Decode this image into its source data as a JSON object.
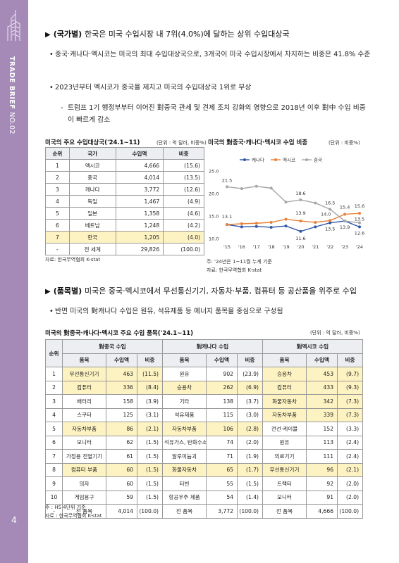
{
  "sidebar": {
    "title_bold": "TRADE BRIEF",
    "title_thin": "NO.02",
    "page_number": "4"
  },
  "section1": {
    "head_bold": "(국가별)",
    "head_rest": "한국은 미국 수입시장 내 7위(4.0%)에 달하는 상위 수입대상국",
    "bullets": [
      "중국·캐나다·멕시코는 미국의 최대 수입대상국으로, 3개국이 미국 수입시장에서 차지하는 비중은 41.8% 수준",
      "2023년부터 멕시코가 중국을 제치고 미국의 수입대상국 1위로 부상"
    ],
    "dash": "트럼프 1기 행정부부터 이어진 對중국 관세 및 견제 조치 강화의 영향으로 2018년 이후 對中 수입 비중이 빠르게 감소"
  },
  "rank_table": {
    "caption": "미국의 주요 수입대상국('24.1~11)",
    "unit": "(단위 : 억 달러, 비중%)",
    "headers": [
      "순위",
      "국가",
      "수입액",
      "비중"
    ],
    "rows": [
      [
        "1",
        "멕시코",
        "4,666",
        "(15.6)"
      ],
      [
        "2",
        "중국",
        "4,014",
        "(13.5)"
      ],
      [
        "3",
        "캐나다",
        "3,772",
        "(12.6)"
      ],
      [
        "4",
        "독일",
        "1,467",
        "(4.9)"
      ],
      [
        "5",
        "일본",
        "1,358",
        "(4.6)"
      ],
      [
        "6",
        "베트남",
        "1,248",
        "(4.2)"
      ],
      [
        "7",
        "한국",
        "1,205",
        "(4.0)"
      ],
      [
        "-",
        "전 세계",
        "29,826",
        "(100.0)"
      ]
    ],
    "source": "자료: 한국무역협회 K-stat"
  },
  "chart_data": {
    "type": "line",
    "title": "미국의 對중국·캐나다·멕시코 수입 비중",
    "unit": "(단위 : 비중%)",
    "x": [
      "'15",
      "'16",
      "'17",
      "'18",
      "'19",
      "'20",
      "'21",
      "'22",
      "'23",
      "'24"
    ],
    "ylim": [
      10.0,
      25.0
    ],
    "yticks": [
      "25.0",
      "20.0",
      "15.0",
      "10.0"
    ],
    "series": [
      {
        "name": "캐나다",
        "color": "#2f56a8",
        "values": [
          13.1,
          12.6,
          12.7,
          12.5,
          12.8,
          11.6,
          12.6,
          13.5,
          13.9,
          12.6
        ]
      },
      {
        "name": "멕시코",
        "color": "#e8813a",
        "values": [
          13.1,
          13.3,
          13.4,
          13.6,
          14.3,
          13.9,
          13.6,
          14.0,
          15.4,
          15.6
        ]
      },
      {
        "name": "중국",
        "color": "#a6a6a6",
        "values": [
          21.5,
          21.1,
          21.6,
          21.2,
          18.1,
          18.6,
          17.9,
          16.5,
          13.9,
          13.5
        ]
      }
    ],
    "labels": [
      {
        "text": "21.5",
        "series": 2,
        "i": 0,
        "dy": -7,
        "dx": 0
      },
      {
        "text": "13.1",
        "series": 0,
        "i": 0,
        "dy": -9,
        "dx": 0
      },
      {
        "text": "18.6",
        "series": 2,
        "i": 5,
        "dy": -7,
        "dx": 0
      },
      {
        "text": "13.9",
        "series": 1,
        "i": 5,
        "dy": -9,
        "dx": 0
      },
      {
        "text": "11.6",
        "series": 0,
        "i": 5,
        "dy": 12,
        "dx": 0
      },
      {
        "text": "16.5",
        "series": 2,
        "i": 7,
        "dy": -7,
        "dx": 0
      },
      {
        "text": "14.0",
        "series": 1,
        "i": 7,
        "dy": -7,
        "dx": -6
      },
      {
        "text": "13.5",
        "series": 0,
        "i": 7,
        "dy": 11,
        "dx": 0
      },
      {
        "text": "15.4",
        "series": 1,
        "i": 8,
        "dy": -8,
        "dx": 0
      },
      {
        "text": "13.9",
        "series": 0,
        "i": 8,
        "dy": 11,
        "dx": 0
      },
      {
        "text": "15.6",
        "series": 1,
        "i": 9,
        "dy": -8,
        "dx": 0
      },
      {
        "text": "13.5",
        "series": 2,
        "i": 9,
        "dy": -3,
        "dx": 0
      },
      {
        "text": "12.6",
        "series": 0,
        "i": 9,
        "dy": 11,
        "dx": 0
      }
    ],
    "notes": [
      "주: '24년은 1~11월 누계 기준",
      "자료: 한국무역협회 K-stat"
    ]
  },
  "section2": {
    "head_bold": "(품목별)",
    "head_rest": "미국은 중국·멕시코에서 무선통신기기, 자동차·부품, 컴퓨터 등 공산품을 위주로 수입",
    "bullet": "반면 미국의 對캐나다 수입은 원유, 석유제품 등 에너지 품목을 중심으로 구성됨"
  },
  "item_table": {
    "caption": "미국의 對중국·캐나다·멕시코 주요 수입 품목('24.1~11)",
    "unit": "(단위 : 억 달러, 비중%)",
    "rank_header": "순위",
    "group_headers": [
      "對중국 수입",
      "對캐나다 수입",
      "對멕시코 수입"
    ],
    "sub_headers": [
      "품목",
      "수입액",
      "비중"
    ],
    "rows": [
      [
        "1",
        "무선통신기기",
        "463",
        "(11.5)",
        "원유",
        "902",
        "(23.9)",
        "승용차",
        "453",
        "(9.7)"
      ],
      [
        "2",
        "컴퓨터",
        "336",
        "(8.4)",
        "승용차",
        "262",
        "(6.9)",
        "컴퓨터",
        "433",
        "(9.3)"
      ],
      [
        "3",
        "배터리",
        "158",
        "(3.9)",
        "기타",
        "138",
        "(3.7)",
        "화물자동차",
        "342",
        "(7.3)"
      ],
      [
        "4",
        "스쿠터",
        "125",
        "(3.1)",
        "석유제품",
        "115",
        "(3.0)",
        "자동차부품",
        "339",
        "(7.3)"
      ],
      [
        "5",
        "자동차부품",
        "86",
        "(2.1)",
        "자동차부품",
        "106",
        "(2.8)",
        "전선·케이블",
        "152",
        "(3.3)"
      ],
      [
        "6",
        "모니터",
        "62",
        "(1.5)",
        "석유가스, 탄화수소",
        "74",
        "(2.0)",
        "원유",
        "113",
        "(2.4)"
      ],
      [
        "7",
        "가정용 전열기기",
        "61",
        "(1.5)",
        "알루미늄괴",
        "71",
        "(1.9)",
        "의료기기",
        "111",
        "(2.4)"
      ],
      [
        "8",
        "컴퓨터 부품",
        "60",
        "(1.5)",
        "화물자동차",
        "65",
        "(1.7)",
        "무선통신기기",
        "96",
        "(2.1)"
      ],
      [
        "9",
        "의자",
        "60",
        "(1.5)",
        "터빈",
        "55",
        "(1.5)",
        "트랙터",
        "92",
        "(2.0)"
      ],
      [
        "10",
        "게임용구",
        "59",
        "(1.5)",
        "항공우주 제품",
        "54",
        "(1.4)",
        "모니터",
        "91",
        "(2.0)"
      ],
      [
        "-",
        "전 품목",
        "4,014",
        "(100.0)",
        "전 품목",
        "3,772",
        "(100.0)",
        "전 품목",
        "4,666",
        "(100.0)"
      ]
    ],
    "highlight": [
      [
        0,
        0
      ],
      [
        1,
        0
      ],
      [
        4,
        0
      ],
      [
        7,
        0
      ],
      [
        1,
        1
      ],
      [
        4,
        1
      ],
      [
        7,
        1
      ],
      [
        0,
        2
      ],
      [
        1,
        2
      ],
      [
        2,
        2
      ],
      [
        3,
        2
      ],
      [
        7,
        2
      ]
    ],
    "notes": [
      "주 : HS 4단위 기준",
      "자료 : 한국무역협회 K-stat"
    ]
  }
}
